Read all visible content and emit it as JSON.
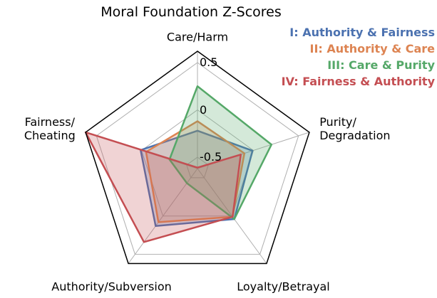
{
  "chart_data": {
    "type": "radar",
    "title": "Moral Foundation Z-Scores",
    "categories": [
      "Care/Harm",
      "Purity/\nDegradation",
      "Loyalty/Betrayal",
      "Authority/Subversion",
      "Fairness/\nCheating"
    ],
    "ylim": [
      -0.62,
      0.62
    ],
    "yticks": [
      -0.5,
      0.0,
      0.5
    ],
    "grid": true,
    "series": [
      {
        "name": "I: Authority & Fairness",
        "color": "#4c72b0",
        "values": [
          -0.22,
          -0.01,
          0.04,
          0.13,
          0.01
        ]
      },
      {
        "name": "II: Authority & Care",
        "color": "#dd8452",
        "values": [
          -0.12,
          -0.1,
          0.01,
          0.08,
          -0.05
        ]
      },
      {
        "name": "III: Care & Purity",
        "color": "#55a868",
        "values": [
          0.25,
          0.2,
          0.04,
          -0.43,
          -0.31
        ]
      },
      {
        "name": "IV: Fairness & Authority",
        "color": "#c44e52",
        "values": [
          -0.61,
          -0.14,
          0.01,
          0.34,
          0.62
        ]
      }
    ]
  }
}
